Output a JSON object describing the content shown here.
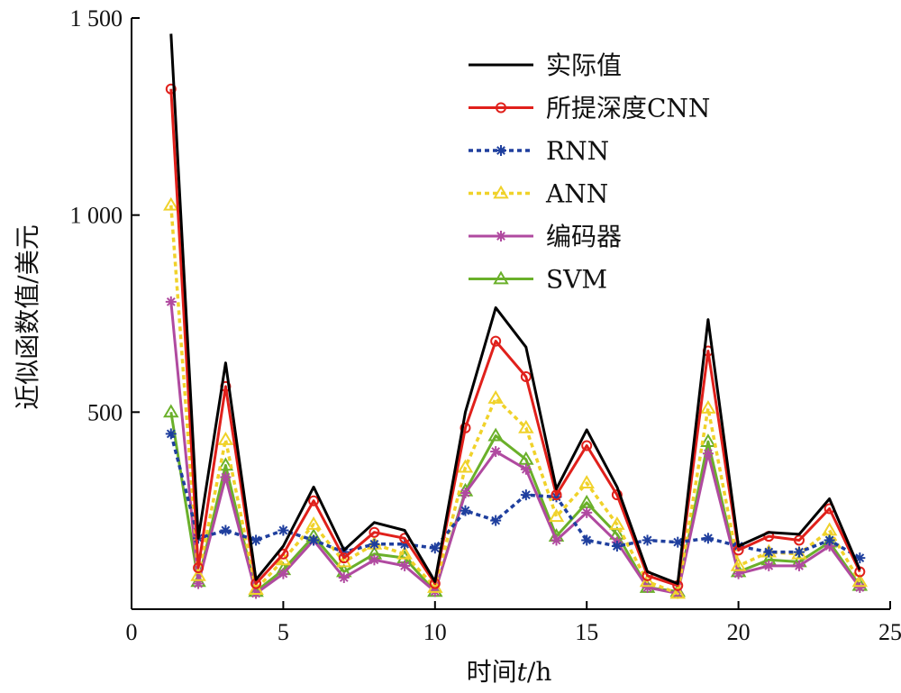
{
  "chart_data": {
    "type": "line",
    "title": "",
    "xlabel_parts": [
      "时间",
      "t",
      "/h"
    ],
    "ylabel": "近似函数值/美元",
    "xlim": [
      0,
      25
    ],
    "ylim": [
      0,
      1500
    ],
    "x_ticks": [
      0,
      5,
      10,
      15,
      20,
      25
    ],
    "x_tick_labels": [
      "0",
      "5",
      "10",
      "15",
      "20",
      "25"
    ],
    "y_ticks": [
      500,
      1000,
      1500
    ],
    "y_tick_labels": [
      "500",
      "1 000",
      "1 500"
    ],
    "grid": false,
    "legend_position": "top-right",
    "x": [
      1.3,
      2.2,
      3.1,
      4.1,
      5,
      6,
      7,
      8,
      9,
      10,
      11,
      12,
      13,
      14,
      15,
      16,
      17,
      18,
      19,
      20,
      21,
      22,
      23,
      24
    ],
    "series": [
      {
        "name": "实际值",
        "color": "#000000",
        "style": "solid",
        "marker": "none",
        "values": [
          1460,
          180,
          625,
          75,
          160,
          310,
          150,
          220,
          200,
          70,
          500,
          765,
          665,
          305,
          455,
          310,
          95,
          65,
          735,
          160,
          195,
          190,
          280,
          100
        ]
      },
      {
        "name": "所提深度CNN",
        "color": "#e0201b",
        "style": "solid",
        "marker": "circle",
        "values": [
          1320,
          105,
          565,
          65,
          140,
          275,
          130,
          195,
          180,
          65,
          460,
          680,
          590,
          290,
          415,
          290,
          85,
          60,
          655,
          150,
          185,
          175,
          255,
          95
        ]
      },
      {
        "name": "RNN",
        "color": "#1f3f9e",
        "style": "dotted",
        "marker": "asterisk",
        "values": [
          445,
          180,
          200,
          175,
          200,
          175,
          145,
          165,
          165,
          155,
          250,
          225,
          290,
          285,
          175,
          160,
          175,
          170,
          180,
          160,
          145,
          145,
          175,
          130
        ]
      },
      {
        "name": "ANN",
        "color": "#f0d22a",
        "style": "dotted",
        "marker": "triangle",
        "values": [
          1025,
          85,
          430,
          50,
          125,
          215,
          120,
          165,
          140,
          55,
          360,
          535,
          460,
          235,
          320,
          215,
          70,
          40,
          510,
          110,
          145,
          140,
          200,
          70
        ]
      },
      {
        "name": "编码器",
        "color": "#b04aa0",
        "style": "solid",
        "marker": "asterisk",
        "values": [
          780,
          65,
          335,
          40,
          90,
          175,
          80,
          125,
          110,
          45,
          295,
          400,
          355,
          175,
          245,
          170,
          55,
          40,
          395,
          90,
          110,
          110,
          160,
          55
        ]
      },
      {
        "name": "SVM",
        "color": "#6ab02a",
        "style": "solid",
        "marker": "triangle",
        "values": [
          500,
          70,
          365,
          45,
          100,
          185,
          95,
          140,
          130,
          45,
          300,
          440,
          380,
          185,
          270,
          190,
          55,
          45,
          425,
          95,
          125,
          120,
          170,
          60
        ]
      }
    ]
  }
}
